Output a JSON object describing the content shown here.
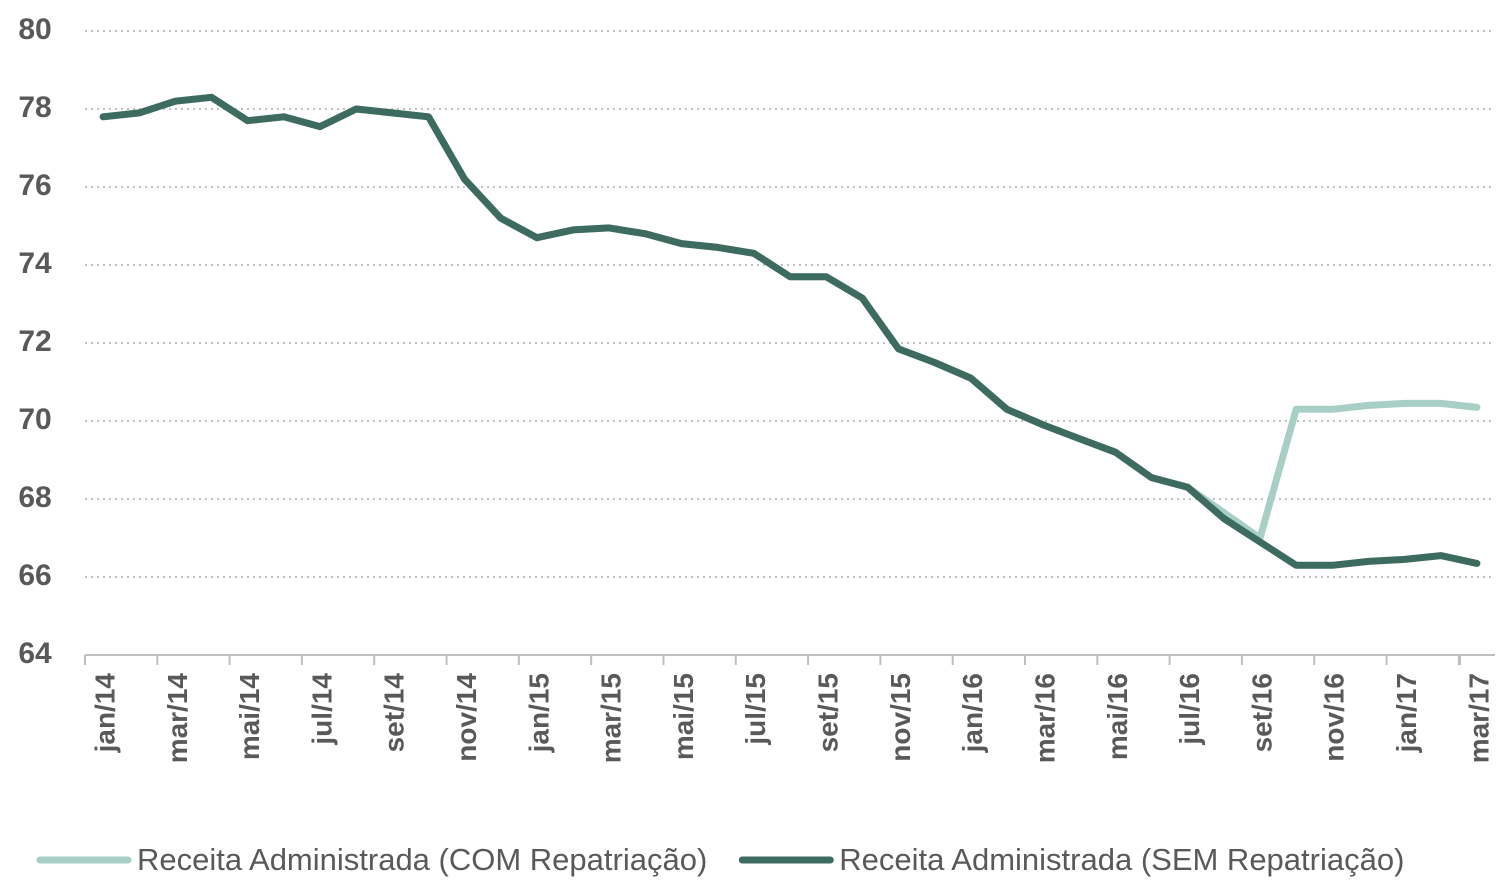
{
  "chart_data": {
    "type": "line",
    "categories": [
      "jan/14",
      null,
      "mar/14",
      null,
      "mai/14",
      null,
      "jul/14",
      null,
      "set/14",
      null,
      "nov/14",
      null,
      "jan/15",
      null,
      "mar/15",
      null,
      "mai/15",
      null,
      "jul/15",
      null,
      "set/15",
      null,
      "nov/15",
      null,
      "jan/16",
      null,
      "mar/16",
      null,
      "mai/16",
      null,
      "jul/16",
      null,
      "set/16",
      null,
      "nov/16",
      null,
      "jan/17",
      null,
      "mar/17"
    ],
    "series": [
      {
        "name": "Receita Administrada (COM Repatriação)",
        "color": "#a8cfc5",
        "values": [
          77.8,
          77.9,
          78.2,
          78.3,
          77.7,
          77.8,
          77.55,
          78.0,
          77.9,
          77.8,
          76.2,
          75.2,
          74.7,
          74.9,
          74.95,
          74.8,
          74.55,
          74.45,
          74.3,
          73.7,
          73.7,
          73.15,
          71.85,
          71.5,
          71.1,
          70.3,
          69.9,
          69.55,
          69.2,
          68.55,
          68.3,
          67.65,
          67.0,
          70.3,
          70.3,
          70.4,
          70.45,
          70.45,
          70.35
        ]
      },
      {
        "name": "Receita Administrada (SEM Repatriação)",
        "color": "#3d6b5f",
        "values": [
          77.8,
          77.9,
          78.2,
          78.3,
          77.7,
          77.8,
          77.55,
          78.0,
          77.9,
          77.8,
          76.2,
          75.2,
          74.7,
          74.9,
          74.95,
          74.8,
          74.55,
          74.45,
          74.3,
          73.7,
          73.7,
          73.15,
          71.85,
          71.5,
          71.1,
          70.3,
          69.9,
          69.55,
          69.2,
          68.55,
          68.3,
          67.5,
          66.9,
          66.3,
          66.3,
          66.4,
          66.45,
          66.55,
          66.35
        ]
      }
    ],
    "ylim": [
      64,
      80
    ],
    "yticks": [
      64,
      66,
      68,
      70,
      72,
      74,
      76,
      78,
      80
    ],
    "grid": true,
    "legend": "bottom"
  }
}
